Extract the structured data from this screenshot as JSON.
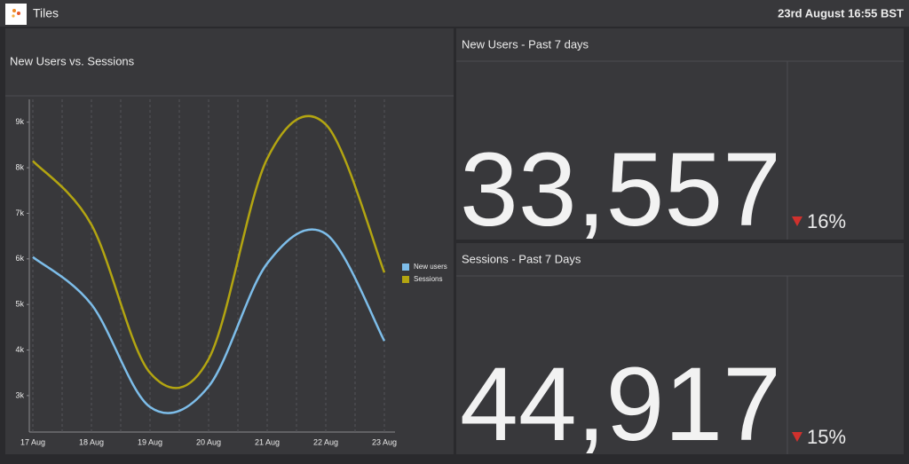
{
  "header": {
    "title": "Tiles",
    "datetime": "23rd August 16:55 BST"
  },
  "chart_data": {
    "type": "line",
    "title": "New Users vs. Sessions",
    "categories": [
      "17 Aug",
      "18 Aug",
      "19 Aug",
      "20 Aug",
      "21 Aug",
      "22 Aug",
      "23 Aug"
    ],
    "series": [
      {
        "name": "New users",
        "color": "#7dbde9",
        "values": [
          6040,
          5000,
          2750,
          3200,
          5900,
          6550,
          4200
        ]
      },
      {
        "name": "Sessions",
        "color": "#b3a511",
        "values": [
          8150,
          6750,
          3500,
          3800,
          8200,
          8950,
          5700
        ]
      }
    ],
    "ylim": [
      2200,
      9500
    ],
    "yticks": [
      {
        "value": 3000,
        "label": "3k"
      },
      {
        "value": 4000,
        "label": "4k"
      },
      {
        "value": 5000,
        "label": "5k"
      },
      {
        "value": 6000,
        "label": "6k"
      },
      {
        "value": 7000,
        "label": "7k"
      },
      {
        "value": 8000,
        "label": "8k"
      },
      {
        "value": 9000,
        "label": "9k"
      }
    ],
    "grid": true,
    "legend": "right"
  },
  "tiles": [
    {
      "title": "New Users - Past 7 days",
      "value": "33,557",
      "change": "16%"
    },
    {
      "title": "Sessions - Past 7 Days",
      "value": "44,917",
      "change": "15%"
    }
  ]
}
